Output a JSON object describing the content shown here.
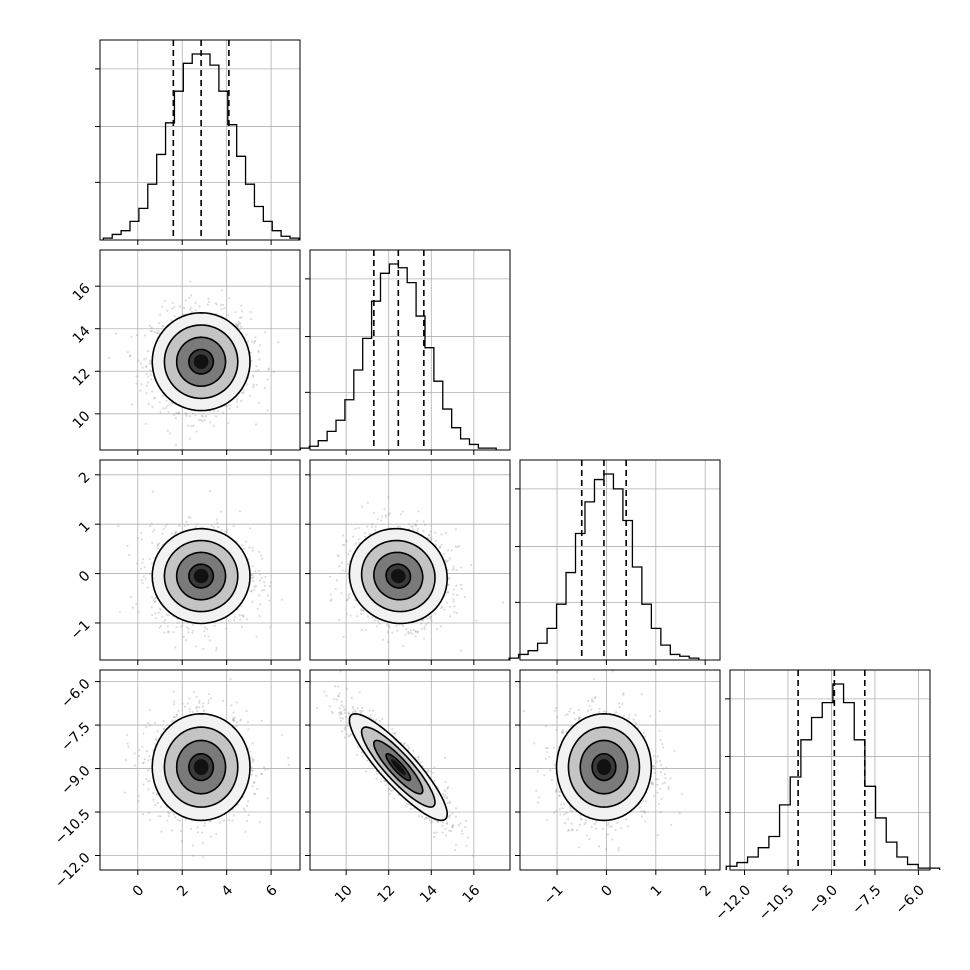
{
  "chart_data": {
    "type": "corner",
    "parameters": [
      {
        "ticks": [
          0,
          2,
          4,
          6
        ],
        "tick_labels": [
          "0",
          "2",
          "4",
          "6"
        ],
        "range": [
          -1.7,
          7.3
        ],
        "mean": 2.85,
        "std": 1.1,
        "quantiles": [
          1.6,
          2.85,
          4.1
        ],
        "hist_counts": [
          0.01,
          0.03,
          0.05,
          0.1,
          0.17,
          0.3,
          0.46,
          0.63,
          0.8,
          0.95,
          1.0,
          1.0,
          0.94,
          0.8,
          0.62,
          0.45,
          0.3,
          0.18,
          0.1,
          0.05,
          0.02,
          0.01
        ]
      },
      {
        "ticks": [
          10,
          12,
          14,
          16
        ],
        "tick_labels": [
          "10",
          "12",
          "14",
          "16"
        ],
        "range": [
          8.3,
          17.7
        ],
        "mean": 12.45,
        "std": 1.15,
        "quantiles": [
          11.3,
          12.45,
          13.65
        ],
        "hist_counts": [
          0.01,
          0.02,
          0.05,
          0.1,
          0.16,
          0.27,
          0.43,
          0.6,
          0.8,
          0.95,
          1.0,
          0.98,
          0.9,
          0.72,
          0.55,
          0.37,
          0.22,
          0.12,
          0.06,
          0.03,
          0.01,
          0.01
        ]
      },
      {
        "ticks": [
          -1,
          0,
          1,
          2
        ],
        "tick_labels": [
          "−1",
          "0",
          "1",
          "2"
        ],
        "range": [
          -1.75,
          2.3
        ],
        "mean": -0.05,
        "std": 0.48,
        "quantiles": [
          -0.5,
          -0.05,
          0.4
        ],
        "hist_counts": [
          0.01,
          0.03,
          0.05,
          0.09,
          0.17,
          0.3,
          0.47,
          0.68,
          0.85,
          0.97,
          1.0,
          0.92,
          0.75,
          0.5,
          0.3,
          0.17,
          0.08,
          0.03,
          0.02,
          0.01
        ]
      },
      {
        "ticks": [
          -12.0,
          -10.5,
          -9.0,
          -7.5,
          -6.0
        ],
        "tick_labels": [
          "−12.0",
          "−10.5",
          "−9.0",
          "−7.5",
          "−6.0"
        ],
        "range": [
          -12.5,
          -5.6
        ],
        "mean": -8.95,
        "std": 0.92,
        "quantiles": [
          -10.15,
          -8.9,
          -7.85
        ],
        "hist_counts": [
          0.02,
          0.04,
          0.07,
          0.12,
          0.18,
          0.35,
          0.5,
          0.7,
          0.82,
          0.9,
          1.0,
          0.9,
          0.7,
          0.45,
          0.28,
          0.15,
          0.07,
          0.03,
          0.01,
          0.01
        ]
      }
    ],
    "correlations": [
      [
        1,
        0,
        0,
        0
      ],
      [
        0,
        1,
        -0.05,
        -0.88
      ],
      [
        0,
        -0.05,
        1,
        0
      ],
      [
        0,
        -0.88,
        0,
        1
      ]
    ],
    "hist_ticks_hidden": true,
    "contour_levels": [
      0.5,
      1.0,
      1.5,
      2.0
    ],
    "grid": true,
    "colors": {
      "line": "#000000",
      "grid": "#b0b0b0",
      "points": "#9a9a9a",
      "fill_dark": "#1a1a1a",
      "fill_light": "#ffffff"
    }
  }
}
